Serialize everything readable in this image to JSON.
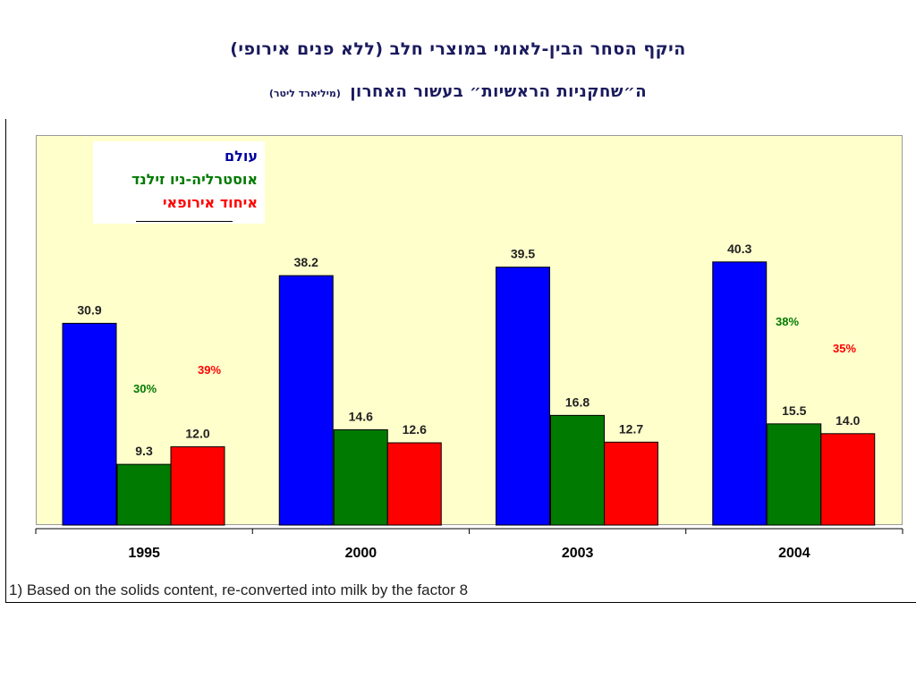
{
  "title": "היקף הסחר הבין-לאומי במוצרי חלב (ללא פנים אירופי)",
  "subtitle": "ה״שחקניות הראשיות״ בעשור האחרון",
  "unit_note": "(מיליארד ליטר)",
  "footnote": "1) Based on the solids content, re-converted into milk by the factor 8",
  "colors": {
    "world": "#0000ff",
    "anz": "#007a00",
    "eu": "#ff0000",
    "plot_bg": "#ffffcc"
  },
  "chart_data": {
    "type": "bar",
    "categories": [
      "1995",
      "2000",
      "2003",
      "2004"
    ],
    "series": [
      {
        "name": "עולם",
        "color": "#0000ff",
        "values": [
          30.9,
          38.2,
          39.5,
          40.3
        ],
        "labels": [
          "30.9",
          "38.2",
          "39.5",
          "40.3"
        ]
      },
      {
        "name": "אוסטרליה-ניו זילנד",
        "color": "#007a00",
        "values": [
          9.3,
          14.6,
          16.8,
          15.5
        ],
        "labels": [
          "9.3",
          "14.6",
          "16.8",
          "15.5"
        ]
      },
      {
        "name": "איחוד אירופאי",
        "color": "#ff0000",
        "values": [
          12.0,
          12.6,
          12.7,
          14.0
        ],
        "labels": [
          "12.0",
          "12.6",
          "12.7",
          "14.0"
        ]
      }
    ],
    "annotations": [
      {
        "category": "1995",
        "series": "אוסטרליה-ניו זילנד",
        "text": "30%"
      },
      {
        "category": "1995",
        "series": "איחוד אירופאי",
        "text": "39%"
      },
      {
        "category": "2004",
        "series": "אוסטרליה-ניו זילנד",
        "text": "38%"
      },
      {
        "category": "2004",
        "series": "איחוד אירופאי",
        "text": "35%"
      }
    ],
    "ylim": [
      0,
      45
    ],
    "grid": false,
    "legend_position": "top-left"
  }
}
